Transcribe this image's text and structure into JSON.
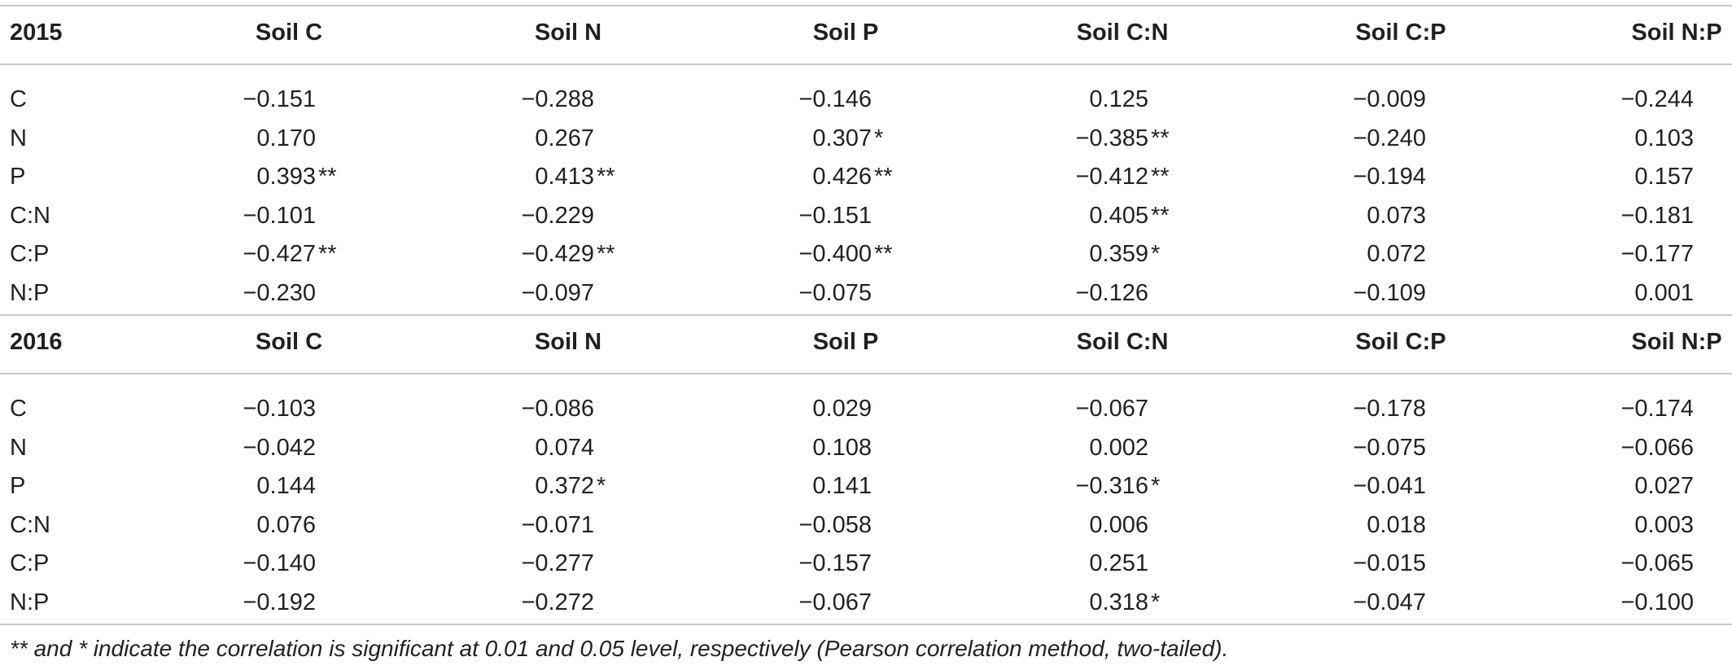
{
  "headers": [
    "Soil C",
    "Soil N",
    "Soil P",
    "Soil C:N",
    "Soil C:P",
    "Soil N:P"
  ],
  "sections": [
    {
      "year": "2015",
      "rows": [
        {
          "label": "C",
          "cells": [
            {
              "v": "−0.151",
              "s": ""
            },
            {
              "v": "−0.288",
              "s": ""
            },
            {
              "v": "−0.146",
              "s": ""
            },
            {
              "v": "0.125",
              "s": ""
            },
            {
              "v": "−0.009",
              "s": ""
            },
            {
              "v": "−0.244",
              "s": ""
            }
          ]
        },
        {
          "label": "N",
          "cells": [
            {
              "v": "0.170",
              "s": ""
            },
            {
              "v": "0.267",
              "s": ""
            },
            {
              "v": "0.307",
              "s": "*"
            },
            {
              "v": "−0.385",
              "s": "**"
            },
            {
              "v": "−0.240",
              "s": ""
            },
            {
              "v": "0.103",
              "s": ""
            }
          ]
        },
        {
          "label": "P",
          "cells": [
            {
              "v": "0.393",
              "s": "**"
            },
            {
              "v": "0.413",
              "s": "**"
            },
            {
              "v": "0.426",
              "s": "**"
            },
            {
              "v": "−0.412",
              "s": "**"
            },
            {
              "v": "−0.194",
              "s": ""
            },
            {
              "v": "0.157",
              "s": ""
            }
          ]
        },
        {
          "label": "C:N",
          "cells": [
            {
              "v": "−0.101",
              "s": ""
            },
            {
              "v": "−0.229",
              "s": ""
            },
            {
              "v": "−0.151",
              "s": ""
            },
            {
              "v": "0.405",
              "s": "**"
            },
            {
              "v": "0.073",
              "s": ""
            },
            {
              "v": "−0.181",
              "s": ""
            }
          ]
        },
        {
          "label": "C:P",
          "cells": [
            {
              "v": "−0.427",
              "s": "**"
            },
            {
              "v": "−0.429",
              "s": "**"
            },
            {
              "v": "−0.400",
              "s": "**"
            },
            {
              "v": "0.359",
              "s": "*"
            },
            {
              "v": "0.072",
              "s": ""
            },
            {
              "v": "−0.177",
              "s": ""
            }
          ]
        },
        {
          "label": "N:P",
          "cells": [
            {
              "v": "−0.230",
              "s": ""
            },
            {
              "v": "−0.097",
              "s": ""
            },
            {
              "v": "−0.075",
              "s": ""
            },
            {
              "v": "−0.126",
              "s": ""
            },
            {
              "v": "−0.109",
              "s": ""
            },
            {
              "v": "0.001",
              "s": ""
            }
          ]
        }
      ]
    },
    {
      "year": "2016",
      "rows": [
        {
          "label": "C",
          "cells": [
            {
              "v": "−0.103",
              "s": ""
            },
            {
              "v": "−0.086",
              "s": ""
            },
            {
              "v": "0.029",
              "s": ""
            },
            {
              "v": "−0.067",
              "s": ""
            },
            {
              "v": "−0.178",
              "s": ""
            },
            {
              "v": "−0.174",
              "s": ""
            }
          ]
        },
        {
          "label": "N",
          "cells": [
            {
              "v": "−0.042",
              "s": ""
            },
            {
              "v": "0.074",
              "s": ""
            },
            {
              "v": "0.108",
              "s": ""
            },
            {
              "v": "0.002",
              "s": ""
            },
            {
              "v": "−0.075",
              "s": ""
            },
            {
              "v": "−0.066",
              "s": ""
            }
          ]
        },
        {
          "label": "P",
          "cells": [
            {
              "v": "0.144",
              "s": ""
            },
            {
              "v": "0.372",
              "s": "*"
            },
            {
              "v": "0.141",
              "s": ""
            },
            {
              "v": "−0.316",
              "s": "*"
            },
            {
              "v": "−0.041",
              "s": ""
            },
            {
              "v": "0.027",
              "s": ""
            }
          ]
        },
        {
          "label": "C:N",
          "cells": [
            {
              "v": "0.076",
              "s": ""
            },
            {
              "v": "−0.071",
              "s": ""
            },
            {
              "v": "−0.058",
              "s": ""
            },
            {
              "v": "0.006",
              "s": ""
            },
            {
              "v": "0.018",
              "s": ""
            },
            {
              "v": "0.003",
              "s": ""
            }
          ]
        },
        {
          "label": "C:P",
          "cells": [
            {
              "v": "−0.140",
              "s": ""
            },
            {
              "v": "−0.277",
              "s": ""
            },
            {
              "v": "−0.157",
              "s": ""
            },
            {
              "v": "0.251",
              "s": ""
            },
            {
              "v": "−0.015",
              "s": ""
            },
            {
              "v": "−0.065",
              "s": ""
            }
          ]
        },
        {
          "label": "N:P",
          "cells": [
            {
              "v": "−0.192",
              "s": ""
            },
            {
              "v": "−0.272",
              "s": ""
            },
            {
              "v": "−0.067",
              "s": ""
            },
            {
              "v": "0.318",
              "s": "*"
            },
            {
              "v": "−0.047",
              "s": ""
            },
            {
              "v": "−0.100",
              "s": ""
            }
          ]
        }
      ]
    }
  ],
  "footnote": "** and * indicate the correlation is significant at 0.01 and 0.05 level, respectively (Pearson correlation method, two-tailed)."
}
